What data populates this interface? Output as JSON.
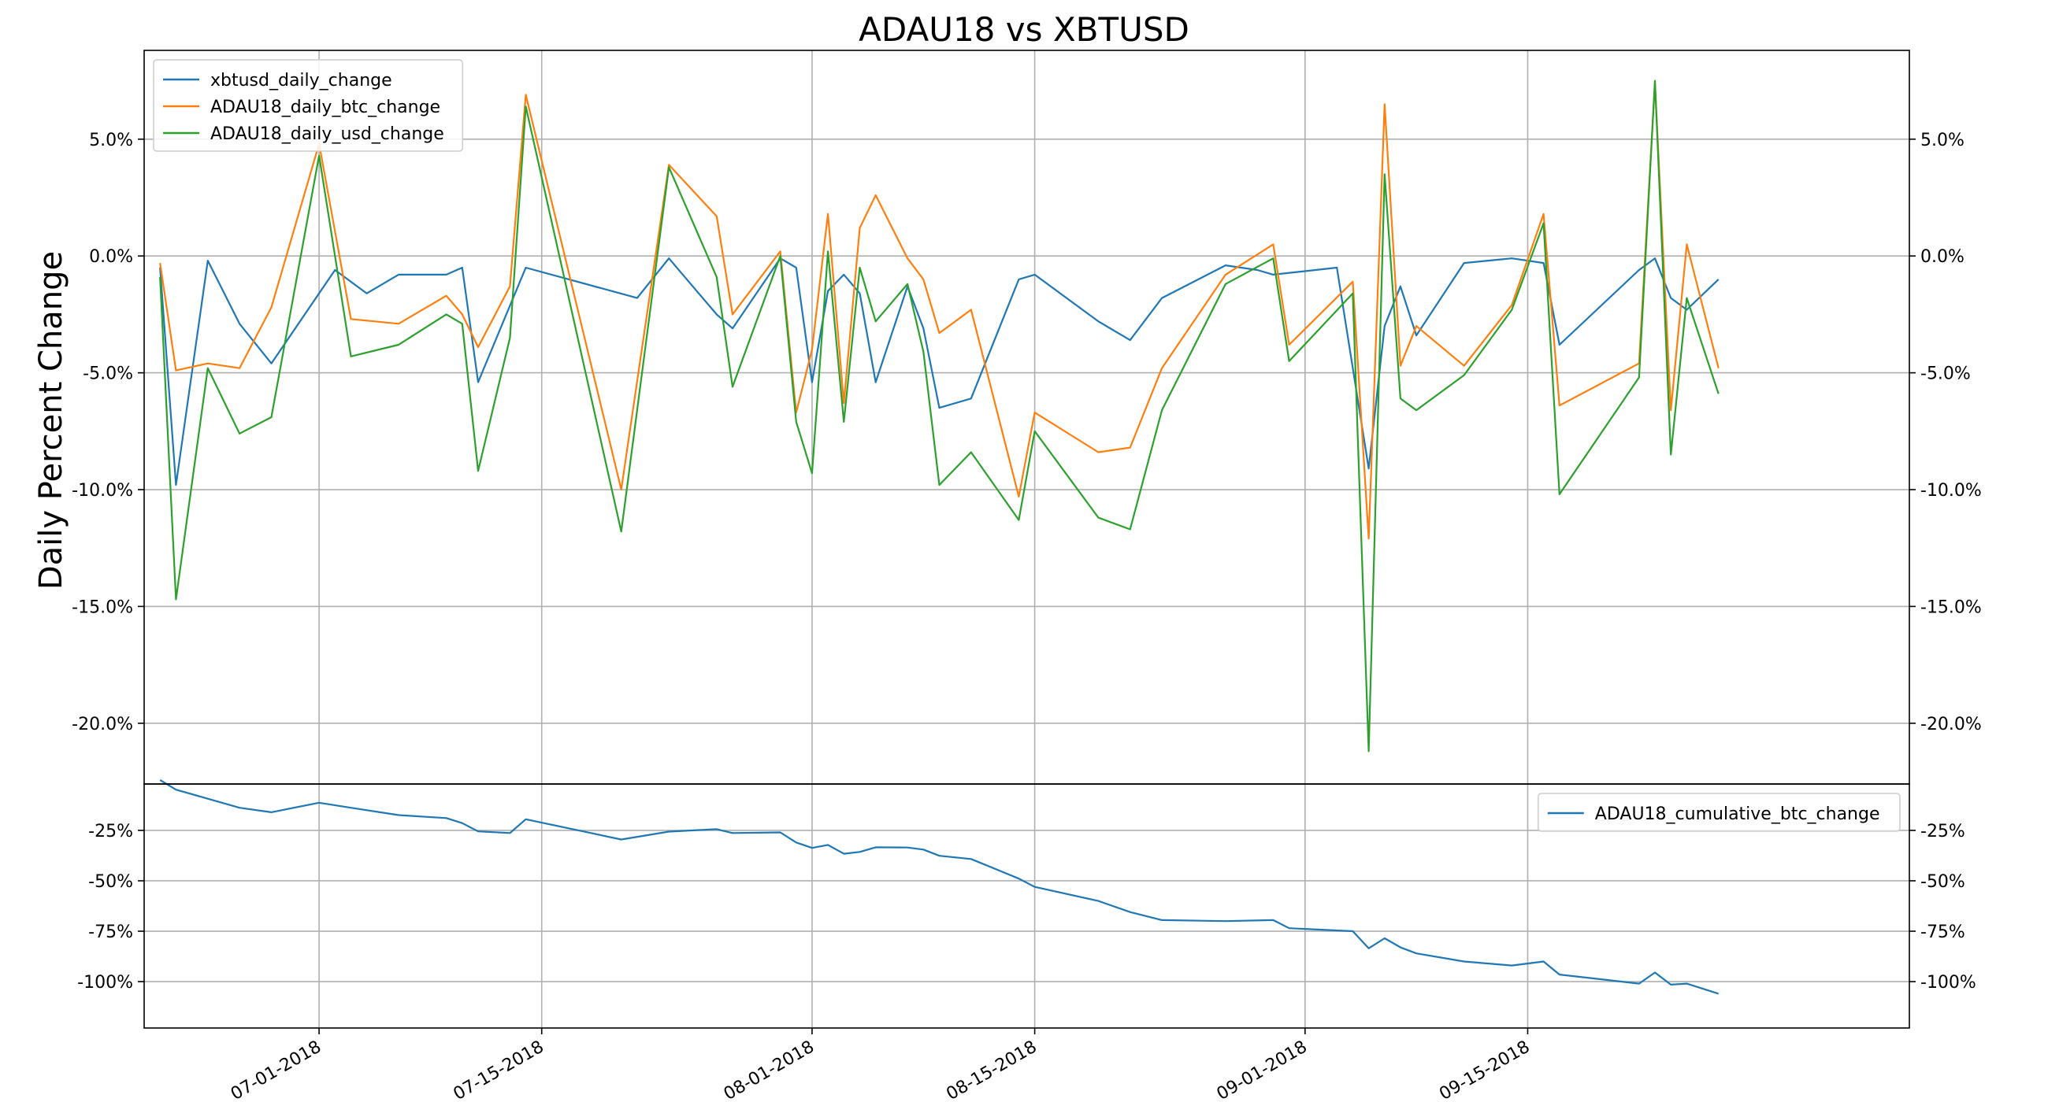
{
  "chart_data": [
    {
      "type": "line",
      "title": "ADAU18 vs XBTUSD",
      "ylabel": "Daily Percent Change",
      "xlabel": "",
      "x_range_days": [
        -11,
        100
      ],
      "ylim": [
        -22.6,
        8.8
      ],
      "yticks": [
        5,
        0,
        -5,
        -10,
        -15,
        -20
      ],
      "ytick_labels": [
        "5.0%",
        "0.0%",
        "-5.0%",
        "-10.0%",
        "-15.0%",
        "-20.0%"
      ],
      "grid": true,
      "legend_position": "upper-left",
      "series": [
        {
          "name": "xbtusd_daily_change",
          "color": "#1f77b4",
          "points": [
            [
              -10,
              -0.5
            ],
            [
              -9,
              -9.8
            ],
            [
              -7,
              -0.2
            ],
            [
              -5,
              -2.9
            ],
            [
              -3,
              -4.6
            ],
            [
              1,
              -0.6
            ],
            [
              3,
              -1.6
            ],
            [
              5,
              -0.8
            ],
            [
              8,
              -0.8
            ],
            [
              9,
              -0.5
            ],
            [
              10,
              -5.4
            ],
            [
              13,
              -0.5
            ],
            [
              20,
              -1.8
            ],
            [
              22,
              -0.1
            ],
            [
              25,
              -2.5
            ],
            [
              26,
              -3.1
            ],
            [
              29,
              -0.1
            ],
            [
              30,
              -0.5
            ],
            [
              31,
              -5.4
            ],
            [
              32,
              -1.5
            ],
            [
              33,
              -0.8
            ],
            [
              34,
              -1.6
            ],
            [
              35,
              -5.4
            ],
            [
              37,
              -1.3
            ],
            [
              38,
              -3.1
            ],
            [
              39,
              -6.5
            ],
            [
              41,
              -6.1
            ],
            [
              44,
              -1.0
            ],
            [
              45,
              -0.8
            ],
            [
              49,
              -2.8
            ],
            [
              51,
              -3.6
            ],
            [
              53,
              -1.8
            ],
            [
              57,
              -0.4
            ],
            [
              59,
              -0.6
            ],
            [
              60,
              -0.8
            ],
            [
              64,
              -0.5
            ],
            [
              66,
              -9.1
            ],
            [
              67,
              -3.0
            ],
            [
              68,
              -1.3
            ],
            [
              69,
              -3.4
            ],
            [
              72,
              -0.3
            ],
            [
              75,
              -0.1
            ],
            [
              77,
              -0.3
            ],
            [
              78,
              -3.8
            ],
            [
              83,
              -0.6
            ],
            [
              84,
              -0.1
            ],
            [
              85,
              -1.8
            ],
            [
              86,
              -2.3
            ],
            [
              88,
              -1.0
            ]
          ]
        },
        {
          "name": "ADAU18_daily_btc_change",
          "color": "#ff7f0e",
          "points": [
            [
              -10,
              -0.3
            ],
            [
              -9,
              -4.9
            ],
            [
              -7,
              -4.6
            ],
            [
              -5,
              -4.8
            ],
            [
              -3,
              -2.2
            ],
            [
              0,
              4.8
            ],
            [
              2,
              -2.7
            ],
            [
              5,
              -2.9
            ],
            [
              8,
              -1.7
            ],
            [
              9,
              -2.5
            ],
            [
              10,
              -3.9
            ],
            [
              12,
              -1.3
            ],
            [
              13,
              6.9
            ],
            [
              19,
              -10.0
            ],
            [
              22,
              3.9
            ],
            [
              25,
              1.7
            ],
            [
              26,
              -2.5
            ],
            [
              29,
              0.2
            ],
            [
              30,
              -6.7
            ],
            [
              31,
              -4.0
            ],
            [
              32,
              1.8
            ],
            [
              33,
              -6.3
            ],
            [
              34,
              1.2
            ],
            [
              35,
              2.6
            ],
            [
              37,
              -0.1
            ],
            [
              38,
              -1.0
            ],
            [
              39,
              -3.3
            ],
            [
              41,
              -2.3
            ],
            [
              44,
              -10.3
            ],
            [
              45,
              -6.7
            ],
            [
              49,
              -8.4
            ],
            [
              51,
              -8.2
            ],
            [
              53,
              -4.8
            ],
            [
              57,
              -0.8
            ],
            [
              60,
              0.5
            ],
            [
              61,
              -3.8
            ],
            [
              65,
              -1.1
            ],
            [
              66,
              -12.1
            ],
            [
              67,
              6.5
            ],
            [
              68,
              -4.7
            ],
            [
              69,
              -3.0
            ],
            [
              72,
              -4.7
            ],
            [
              75,
              -2.1
            ],
            [
              77,
              1.8
            ],
            [
              78,
              -6.4
            ],
            [
              83,
              -4.6
            ],
            [
              84,
              7.4
            ],
            [
              85,
              -6.6
            ],
            [
              86,
              0.5
            ],
            [
              88,
              -4.8
            ]
          ]
        },
        {
          "name": "ADAU18_daily_usd_change",
          "color": "#2ca02c",
          "points": [
            [
              -10,
              -0.9
            ],
            [
              -9,
              -14.7
            ],
            [
              -7,
              -4.8
            ],
            [
              -5,
              -7.6
            ],
            [
              -3,
              -6.9
            ],
            [
              0,
              4.3
            ],
            [
              2,
              -4.3
            ],
            [
              5,
              -3.8
            ],
            [
              8,
              -2.5
            ],
            [
              9,
              -2.9
            ],
            [
              10,
              -9.2
            ],
            [
              12,
              -3.5
            ],
            [
              13,
              6.4
            ],
            [
              19,
              -11.8
            ],
            [
              22,
              3.8
            ],
            [
              25,
              -0.9
            ],
            [
              26,
              -5.6
            ],
            [
              29,
              0.0
            ],
            [
              30,
              -7.1
            ],
            [
              31,
              -9.3
            ],
            [
              32,
              0.2
            ],
            [
              33,
              -7.1
            ],
            [
              34,
              -0.5
            ],
            [
              35,
              -2.8
            ],
            [
              37,
              -1.2
            ],
            [
              38,
              -4.1
            ],
            [
              39,
              -9.8
            ],
            [
              41,
              -8.4
            ],
            [
              44,
              -11.3
            ],
            [
              45,
              -7.5
            ],
            [
              49,
              -11.2
            ],
            [
              51,
              -11.7
            ],
            [
              53,
              -6.6
            ],
            [
              57,
              -1.2
            ],
            [
              60,
              -0.1
            ],
            [
              61,
              -4.5
            ],
            [
              65,
              -1.6
            ],
            [
              66,
              -21.2
            ],
            [
              67,
              3.5
            ],
            [
              68,
              -6.1
            ],
            [
              69,
              -6.6
            ],
            [
              72,
              -5.1
            ],
            [
              75,
              -2.3
            ],
            [
              77,
              1.4
            ],
            [
              78,
              -10.2
            ],
            [
              83,
              -5.2
            ],
            [
              84,
              7.5
            ],
            [
              85,
              -8.5
            ],
            [
              86,
              -1.8
            ],
            [
              88,
              -5.9
            ]
          ]
        }
      ]
    },
    {
      "type": "line",
      "title": "",
      "ylabel": "",
      "x_range_days": [
        -11,
        100
      ],
      "ylim": [
        -123,
        -2
      ],
      "yticks": [
        -25,
        -50,
        -75,
        -100
      ],
      "ytick_labels": [
        "-25%",
        "-50%",
        "-75%",
        "-100%"
      ],
      "grid": true,
      "legend_position": "upper-right",
      "series": [
        {
          "name": "ADAU18_cumulative_btc_change",
          "color": "#1f77b4",
          "points": [
            [
              -10,
              0.0
            ],
            [
              -9,
              -4.8
            ],
            [
              -7,
              -9.3
            ],
            [
              -5,
              -13.8
            ],
            [
              -3,
              -16.0
            ],
            [
              0,
              -11.3
            ],
            [
              2,
              -13.8
            ],
            [
              5,
              -17.4
            ],
            [
              8,
              -18.9
            ],
            [
              9,
              -21.4
            ],
            [
              10,
              -25.5
            ],
            [
              12,
              -26.3
            ],
            [
              13,
              -19.5
            ],
            [
              19,
              -29.5
            ],
            [
              22,
              -25.6
            ],
            [
              25,
              -24.4
            ],
            [
              26,
              -26.3
            ],
            [
              29,
              -26.0
            ],
            [
              30,
              -31.0
            ],
            [
              31,
              -33.7
            ],
            [
              32,
              -32.2
            ],
            [
              33,
              -36.6
            ],
            [
              34,
              -35.7
            ],
            [
              35,
              -33.4
            ],
            [
              37,
              -33.5
            ],
            [
              38,
              -34.5
            ],
            [
              39,
              -37.6
            ],
            [
              41,
              -39.2
            ],
            [
              44,
              -48.9
            ],
            [
              45,
              -53.0
            ],
            [
              49,
              -60.0
            ],
            [
              51,
              -65.5
            ],
            [
              53,
              -69.5
            ],
            [
              57,
              -70.0
            ],
            [
              60,
              -69.5
            ],
            [
              61,
              -73.5
            ],
            [
              65,
              -75.0
            ],
            [
              66,
              -83.5
            ],
            [
              67,
              -78.5
            ],
            [
              68,
              -83.0
            ],
            [
              69,
              -86.0
            ],
            [
              72,
              -90.0
            ],
            [
              75,
              -92.0
            ],
            [
              77,
              -90.0
            ],
            [
              78,
              -96.5
            ],
            [
              83,
              -101.0
            ],
            [
              84,
              -95.5
            ],
            [
              85,
              -101.5
            ],
            [
              86,
              -101.0
            ],
            [
              88,
              -106.0
            ]
          ]
        }
      ]
    }
  ],
  "x_ticks": [
    {
      "day": 0,
      "label": "07-01-2018"
    },
    {
      "day": 14,
      "label": "07-15-2018"
    },
    {
      "day": 31,
      "label": "08-01-2018"
    },
    {
      "day": 45,
      "label": "08-15-2018"
    },
    {
      "day": 62,
      "label": "09-01-2018"
    },
    {
      "day": 76,
      "label": "09-15-2018"
    }
  ]
}
